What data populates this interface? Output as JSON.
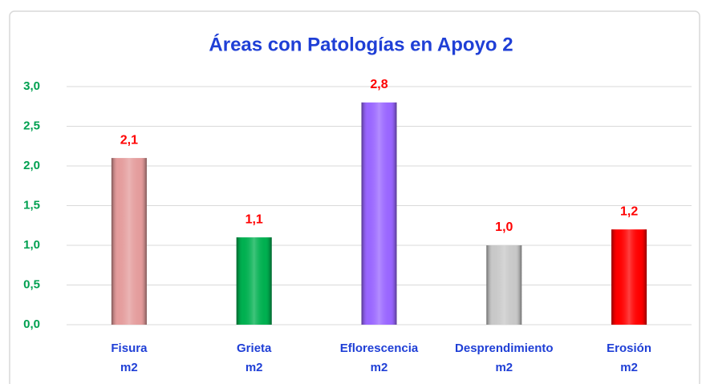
{
  "chart_data": {
    "type": "bar",
    "title": "Áreas con Patologías en Apoyo 2",
    "categories": [
      "Fisura m2",
      "Grieta m2",
      "Eflorescencia m2",
      "Desprendimiento m2",
      "Erosión m2"
    ],
    "values": [
      2.1,
      1.1,
      2.8,
      1.0,
      1.2
    ],
    "value_labels": [
      "2,1",
      "1,1",
      "2,8",
      "1,0",
      "1,2"
    ],
    "colors": [
      "#e49c9c",
      "#00b050",
      "#9966ff",
      "#c8c8c8",
      "#ff0000"
    ],
    "ylim": [
      0,
      3
    ],
    "yticks": [
      {
        "value": 0,
        "label": "0,0"
      },
      {
        "value": 0.5,
        "label": "0,5"
      },
      {
        "value": 1,
        "label": "1,0"
      },
      {
        "value": 1.5,
        "label": "1,5"
      },
      {
        "value": 2,
        "label": "2,0"
      },
      {
        "value": 2.5,
        "label": "2,5"
      },
      {
        "value": 3,
        "label": "3,0"
      }
    ],
    "grid": true
  }
}
